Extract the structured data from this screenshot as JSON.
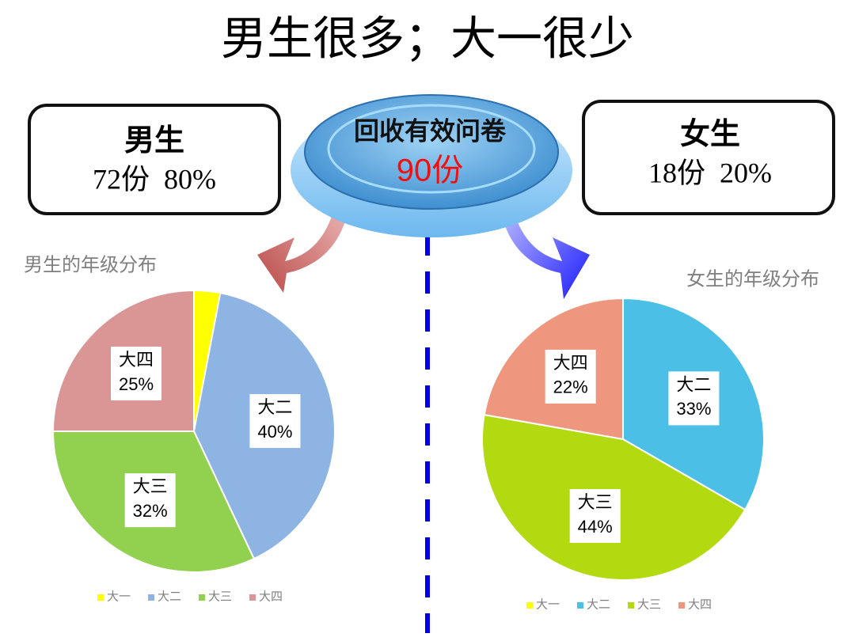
{
  "slide": {
    "title": "男生很多；大一很少",
    "center": {
      "label": "回收有效问卷",
      "count": "90份"
    },
    "boxes": [
      {
        "title": "男生",
        "text": "72份  80%"
      },
      {
        "title": "女生",
        "text": "18份  20%"
      }
    ]
  },
  "chart_data": [
    {
      "type": "pie",
      "title": "男生的年级分布",
      "categories": [
        "大一",
        "大二",
        "大三",
        "大四"
      ],
      "values": [
        3,
        40,
        32,
        25
      ],
      "value_labels": [
        null,
        "40%",
        "32%",
        "25%"
      ],
      "colors": [
        "#ffff00",
        "#8eb4e3",
        "#92d050",
        "#d99694"
      ],
      "legend": "bottom"
    },
    {
      "type": "pie",
      "title": "女生的年级分布",
      "categories": [
        "大一",
        "大二",
        "大三",
        "大四"
      ],
      "values": [
        0,
        33,
        44,
        22
      ],
      "value_labels": [
        null,
        "33%",
        "44%",
        "22%"
      ],
      "colors": [
        "#ffff00",
        "#4bbfe6",
        "#b3d910",
        "#ef977e"
      ],
      "legend": "bottom"
    }
  ]
}
